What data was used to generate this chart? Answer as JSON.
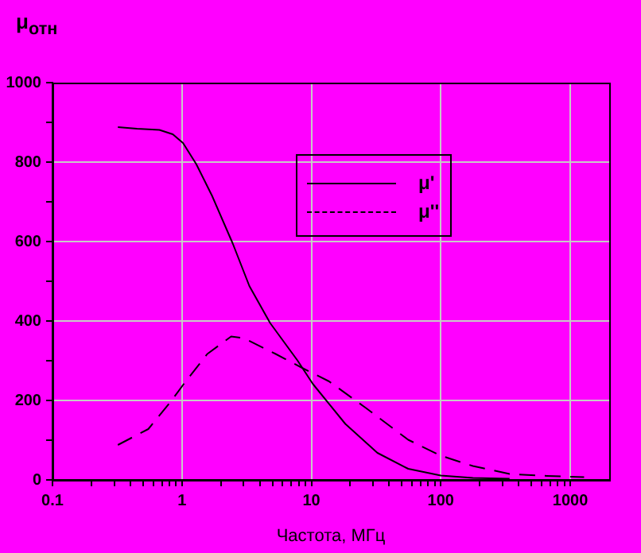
{
  "chart_data": {
    "type": "line",
    "xlabel": "Частота, МГц",
    "ylabel": "μ$_{отн}$",
    "log": "x",
    "grid": true,
    "legend": "top right",
    "marker": "none",
    "xlim": [
      0.1,
      2000
    ],
    "ylim": [
      0,
      1000
    ],
    "xticks": [
      0.1,
      {
        "value": 0.2,
        "label": null
      },
      {
        "value": 0.3,
        "label": null
      },
      {
        "value": 0.4,
        "label": null
      },
      {
        "value": 0.5,
        "label": null
      },
      {
        "value": 0.6,
        "label": null
      },
      {
        "value": 0.7,
        "label": null
      },
      {
        "value": 0.8,
        "label": null
      },
      {
        "value": 0.9,
        "label": null
      },
      1,
      {
        "value": 2,
        "label": null
      },
      {
        "value": 3,
        "label": null
      },
      {
        "value": 4,
        "label": null
      },
      {
        "value": 5,
        "label": null
      },
      {
        "value": 6,
        "label": null
      },
      {
        "value": 7,
        "label": null
      },
      {
        "value": 8,
        "label": null
      },
      {
        "value": 9,
        "label": null
      },
      10,
      {
        "value": 20,
        "label": null
      },
      {
        "value": 30,
        "label": null
      },
      {
        "value": 40,
        "label": null
      },
      {
        "value": 50,
        "label": null
      },
      {
        "value": 60,
        "label": null
      },
      {
        "value": 70,
        "label": null
      },
      {
        "value": 80,
        "label": null
      },
      {
        "value": 90,
        "label": null
      },
      100,
      {
        "value": 200,
        "label": null
      },
      {
        "value": 300,
        "label": null
      },
      {
        "value": 400,
        "label": null
      },
      {
        "value": 500,
        "label": null
      },
      {
        "value": 600,
        "label": null
      },
      {
        "value": 700,
        "label": null
      },
      {
        "value": 800,
        "label": null
      },
      {
        "value": 900,
        "label": null
      },
      1000
    ],
    "yticks": [
      0,
      {
        "value": 100,
        "label": null
      },
      200,
      {
        "value": 300,
        "label": null
      },
      400,
      {
        "value": 500,
        "label": null
      },
      600,
      {
        "value": 700,
        "label": null
      },
      800,
      {
        "value": 900,
        "label": null
      },
      1000
    ],
    "series": [
      {
        "name": "μ'",
        "color": "#000000",
        "line_style": "solid",
        "x": [
          0.32,
          0.45,
          0.67,
          0.85,
          1.02,
          1.29,
          1.71,
          2.47,
          3.32,
          4.8,
          7.8,
          10.3,
          18.3,
          32.4,
          56,
          100,
          177,
          340
        ],
        "values": [
          888,
          884,
          881,
          870,
          848,
          795,
          715,
          595,
          488,
          395,
          301,
          241,
          141,
          68,
          28,
          11,
          5,
          3
        ]
      },
      {
        "name": "μ''",
        "color": "#000000",
        "line_style": "dashed",
        "x": [
          0.32,
          0.55,
          0.81,
          1.07,
          1.57,
          2.4,
          3.0,
          5.3,
          8.6,
          13.7,
          26.4,
          56,
          100,
          177,
          340,
          660,
          1280
        ],
        "values": [
          88,
          128,
          195,
          248,
          317,
          361,
          357,
          317,
          281,
          248,
          181,
          101,
          61,
          35,
          15,
          10,
          7
        ]
      }
    ]
  }
}
